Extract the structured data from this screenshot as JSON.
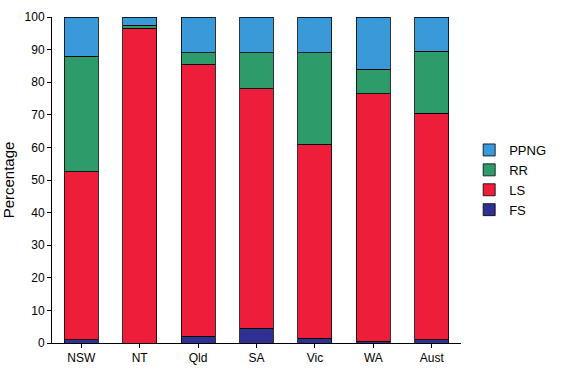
{
  "chart_data": {
    "type": "bar",
    "stacked": true,
    "y_label": "Percentage",
    "categories": [
      "NSW",
      "NT",
      "Qld",
      "SA",
      "Vic",
      "WA",
      "Aust"
    ],
    "series": [
      {
        "name": "FS",
        "color": "#2e3192",
        "values": [
          1,
          0,
          2,
          4.5,
          1.5,
          0.5,
          1
        ]
      },
      {
        "name": "LS",
        "color": "#ee1d3a",
        "values": [
          51.5,
          96.5,
          83.5,
          73.5,
          59.5,
          76,
          69.5
        ]
      },
      {
        "name": "RR",
        "color": "#2e9b6a",
        "values": [
          35.5,
          1,
          3.5,
          11,
          28,
          7.5,
          19
        ]
      },
      {
        "name": "PPNG",
        "color": "#3a9ad9",
        "values": [
          12,
          2.5,
          11,
          11,
          11,
          16,
          10.5
        ]
      }
    ],
    "ylim": [
      0,
      100
    ],
    "yticks": [
      0,
      10,
      20,
      30,
      40,
      50,
      60,
      70,
      80,
      90,
      100
    ],
    "grid": false,
    "legend": "right"
  }
}
